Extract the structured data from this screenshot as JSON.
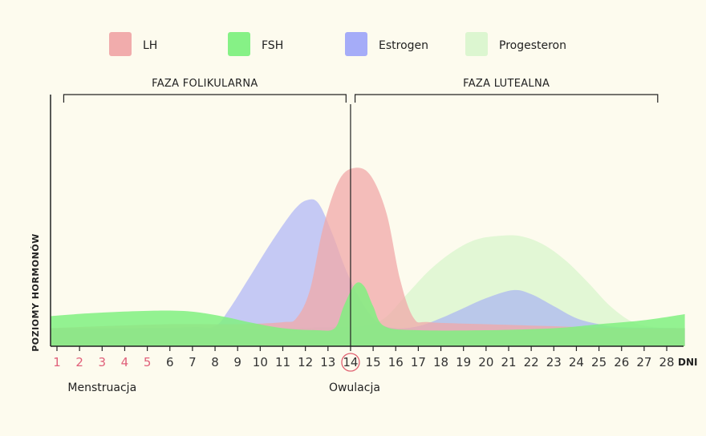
{
  "colors": {
    "background": "#fdfbee",
    "axis": "#222222",
    "menstruation_day": "#e0607a",
    "ovulation_circle": "#e06070",
    "tick_label": "#333333"
  },
  "chart_data": {
    "type": "area",
    "title": "",
    "xlabel": "DNI",
    "ylabel": "POZIOMY HORMONÓW",
    "x": [
      1,
      2,
      3,
      4,
      5,
      6,
      7,
      8,
      9,
      10,
      11,
      12,
      13,
      14,
      15,
      16,
      17,
      18,
      19,
      20,
      21,
      22,
      23,
      24,
      25,
      26,
      27,
      28
    ],
    "x_tick_labels": [
      "1",
      "2",
      "3",
      "4",
      "5",
      "6",
      "7",
      "8",
      "9",
      "10",
      "11",
      "12",
      "13",
      "14",
      "15",
      "16",
      "17",
      "18",
      "19",
      "20",
      "21",
      "22",
      "23",
      "24",
      "25",
      "26",
      "27",
      "28"
    ],
    "ylim": [
      0,
      100
    ],
    "menstruation_days": [
      1,
      2,
      3,
      4,
      5
    ],
    "ovulation_day": 14,
    "legend_position": "top",
    "grid": false,
    "series": [
      {
        "name": "LH",
        "color": "#f0a8a8",
        "opacity": 0.75,
        "points": [
          [
            0.7,
            9
          ],
          [
            3,
            10
          ],
          [
            6,
            11
          ],
          [
            9,
            11
          ],
          [
            11,
            12
          ],
          [
            11.6,
            14
          ],
          [
            12.2,
            28
          ],
          [
            12.8,
            60
          ],
          [
            13.5,
            83
          ],
          [
            14.2,
            89
          ],
          [
            14.9,
            85
          ],
          [
            15.6,
            66
          ],
          [
            16.2,
            33
          ],
          [
            16.8,
            14
          ],
          [
            17.5,
            12
          ],
          [
            20,
            11
          ],
          [
            23,
            10
          ],
          [
            26,
            9
          ],
          [
            28.8,
            9
          ]
        ]
      },
      {
        "name": "FSH",
        "color": "#80f080",
        "opacity": 0.85,
        "points": [
          [
            0.7,
            15
          ],
          [
            2.5,
            16.5
          ],
          [
            4.5,
            17.5
          ],
          [
            6,
            17.8
          ],
          [
            7.2,
            17
          ],
          [
            8.5,
            14.5
          ],
          [
            9.5,
            12
          ],
          [
            11,
            9
          ],
          [
            12.5,
            8
          ],
          [
            13.3,
            9
          ],
          [
            13.7,
            20
          ],
          [
            14.2,
            31
          ],
          [
            14.6,
            30
          ],
          [
            15.0,
            20
          ],
          [
            15.5,
            10
          ],
          [
            17,
            8
          ],
          [
            20,
            8
          ],
          [
            23,
            9
          ],
          [
            25,
            11
          ],
          [
            27,
            13
          ],
          [
            28.8,
            16
          ]
        ]
      },
      {
        "name": "Estrogen",
        "color": "#a0a8f8",
        "opacity": 0.6,
        "points": [
          [
            0.7,
            9
          ],
          [
            4,
            9
          ],
          [
            7,
            9.5
          ],
          [
            8,
            10
          ],
          [
            8.6,
            18
          ],
          [
            9.5,
            34
          ],
          [
            10.5,
            52
          ],
          [
            11.5,
            68
          ],
          [
            12.1,
            73
          ],
          [
            12.6,
            71
          ],
          [
            13.2,
            56
          ],
          [
            13.8,
            38
          ],
          [
            14.5,
            22
          ],
          [
            15.2,
            12
          ],
          [
            16,
            9
          ],
          [
            17,
            10
          ],
          [
            18,
            14
          ],
          [
            19,
            19
          ],
          [
            20,
            24
          ],
          [
            21.2,
            28
          ],
          [
            22,
            26
          ],
          [
            23,
            20
          ],
          [
            24,
            14
          ],
          [
            25,
            11
          ],
          [
            26,
            9.5
          ],
          [
            28.8,
            9
          ]
        ]
      },
      {
        "name": "Progesteron",
        "color": "#d8f5cc",
        "opacity": 0.75,
        "points": [
          [
            0.7,
            9
          ],
          [
            10,
            9
          ],
          [
            13,
            9.5
          ],
          [
            14.5,
            10
          ],
          [
            15.5,
            14
          ],
          [
            16.5,
            26
          ],
          [
            17.5,
            38
          ],
          [
            18.5,
            47
          ],
          [
            19.5,
            53
          ],
          [
            20.5,
            55
          ],
          [
            21.5,
            55
          ],
          [
            22.5,
            51
          ],
          [
            23.5,
            43
          ],
          [
            24.5,
            32
          ],
          [
            25.5,
            20
          ],
          [
            26.5,
            12
          ],
          [
            27.5,
            9.5
          ],
          [
            28.8,
            9
          ]
        ]
      }
    ],
    "phases": [
      {
        "label": "FAZA FOLIKULARNA",
        "from": 1.3,
        "to": 13.8
      },
      {
        "label": "FAZA LUTEALNA",
        "from": 14.2,
        "to": 27.6
      }
    ],
    "annotations": [
      {
        "text": "Menstruacja",
        "x": 3
      },
      {
        "text": "Owulacja",
        "x": 14
      }
    ]
  }
}
